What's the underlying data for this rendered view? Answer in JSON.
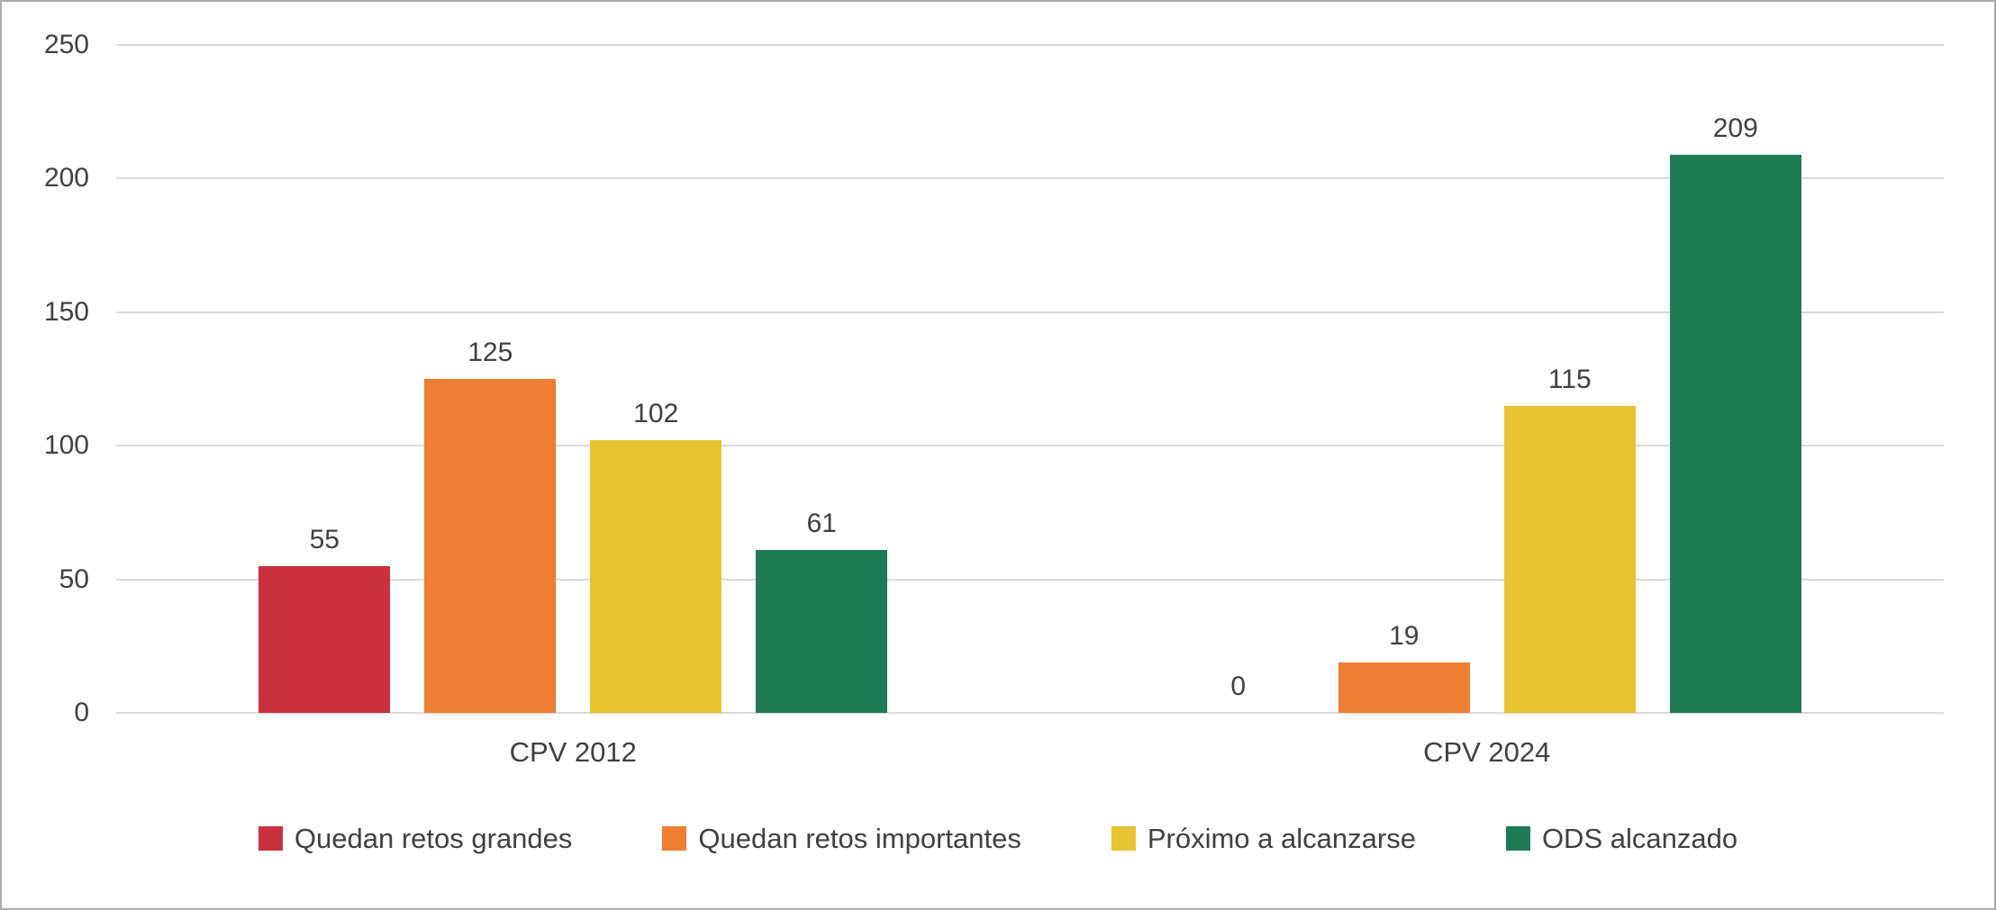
{
  "chart_data": {
    "type": "bar",
    "categories": [
      "CPV 2012",
      "CPV 2024"
    ],
    "series": [
      {
        "name": "Quedan retos grandes",
        "color": "#c9303e",
        "values": [
          55,
          0
        ]
      },
      {
        "name": "Quedan retos importantes",
        "color": "#ed7d31",
        "values": [
          125,
          19
        ]
      },
      {
        "name": "Próximo a alcanzarse",
        "color": "#e8c331",
        "values": [
          102,
          115
        ]
      },
      {
        "name": "ODS alcanzado",
        "color": "#1f7b55",
        "values": [
          61,
          209
        ]
      }
    ],
    "title": "",
    "xlabel": "",
    "ylabel": "",
    "ylim": [
      0,
      250
    ],
    "yticks": [
      0,
      50,
      100,
      150,
      200,
      250
    ],
    "grid": true,
    "legend_position": "bottom"
  },
  "colors": {
    "grid": "#d9d9d9",
    "axis_text": "#404040",
    "value_label_text": "#404040",
    "frame_border": "#ababab",
    "background": "#ffffff"
  }
}
